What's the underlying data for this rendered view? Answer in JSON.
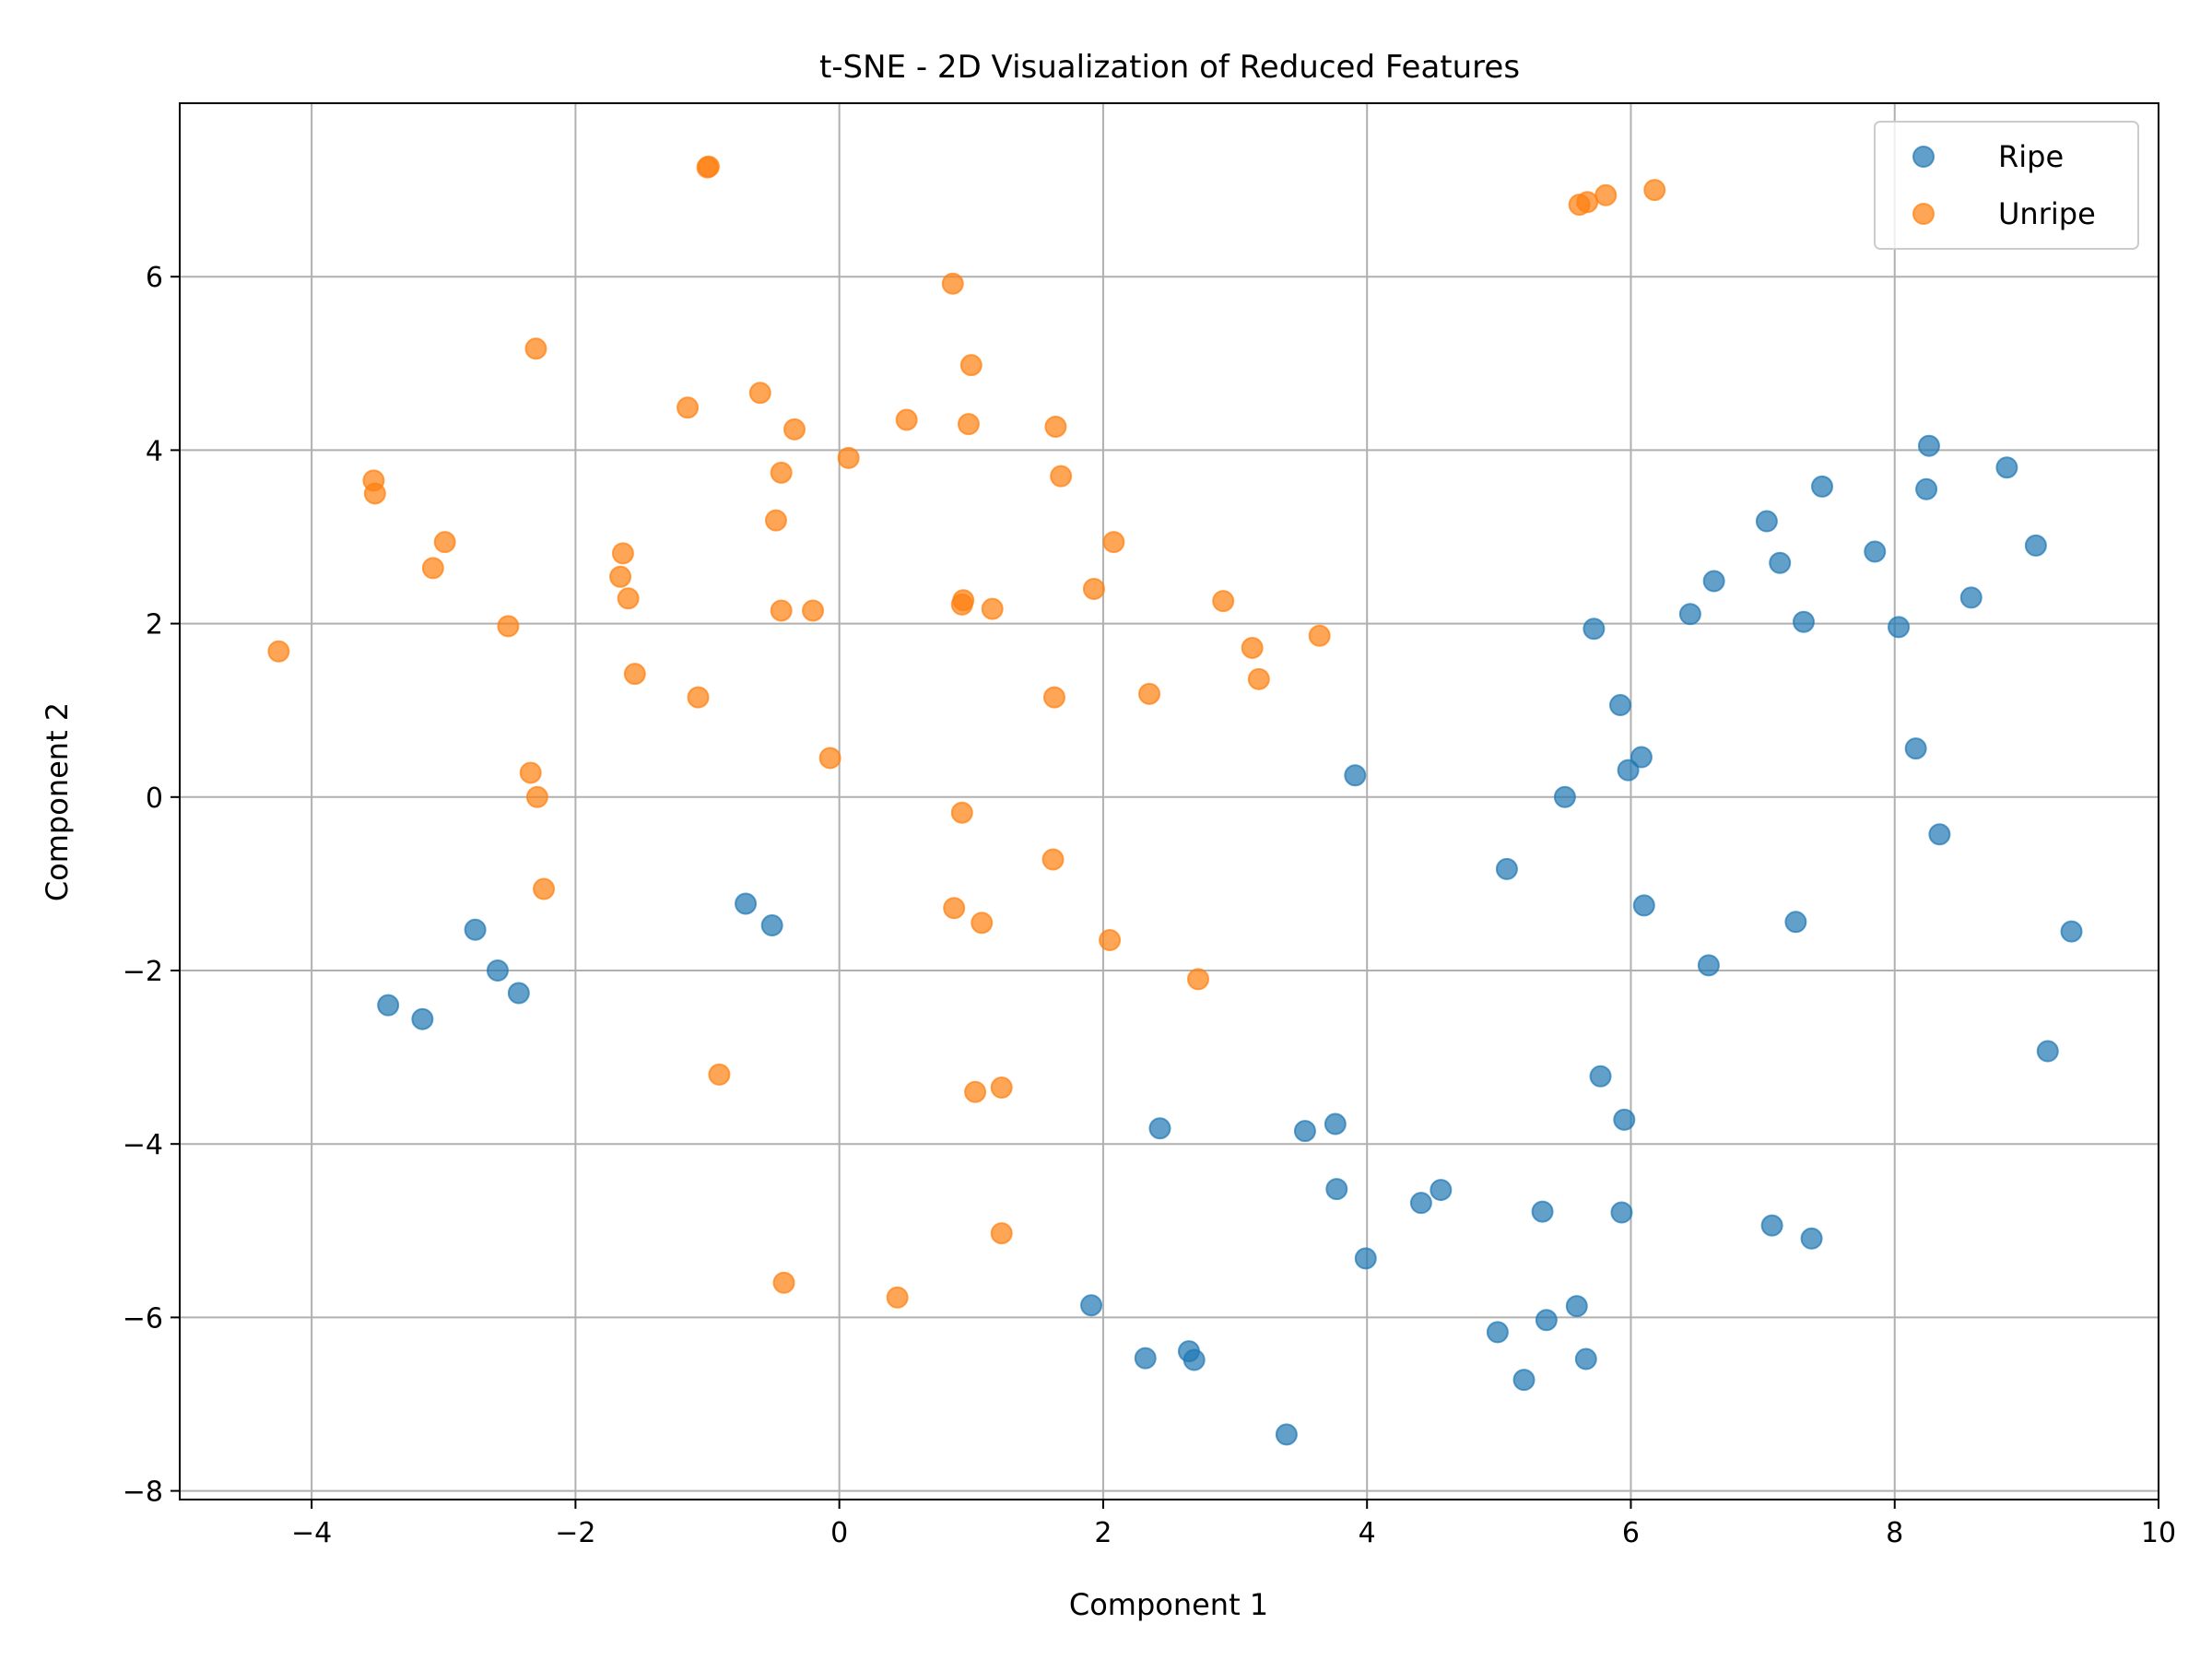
{
  "chart_data": {
    "type": "scatter",
    "title": "t-SNE - 2D Visualization of Reduced Features",
    "xlabel": "Component 1",
    "ylabel": "Component 2",
    "xlim": [
      -5,
      10
    ],
    "ylim": [
      -8.1,
      8.0
    ],
    "xticks": [
      -4,
      -2,
      0,
      2,
      4,
      6,
      8,
      10
    ],
    "yticks": [
      -8,
      -6,
      -4,
      -2,
      0,
      2,
      4,
      6
    ],
    "xtick_labels": [
      "−4",
      "−2",
      "0",
      "2",
      "4",
      "6",
      "8",
      "10"
    ],
    "ytick_labels": [
      "−8",
      "−6",
      "−4",
      "−2",
      "0",
      "2",
      "4",
      "6"
    ],
    "grid": true,
    "legend_position": "top-right",
    "series": [
      {
        "name": "Ripe",
        "color": "#1f77b4",
        "points": [
          [
            -3.42,
            -2.4
          ],
          [
            -3.16,
            -2.56
          ],
          [
            -2.76,
            -1.53
          ],
          [
            -2.59,
            -2.0
          ],
          [
            -2.43,
            -2.26
          ],
          [
            -0.71,
            -1.23
          ],
          [
            -0.51,
            -1.48
          ],
          [
            1.91,
            -5.86
          ],
          [
            2.32,
            -6.47
          ],
          [
            2.43,
            -3.82
          ],
          [
            2.65,
            -6.39
          ],
          [
            2.69,
            -6.49
          ],
          [
            3.39,
            -7.35
          ],
          [
            3.53,
            -3.85
          ],
          [
            3.76,
            -3.77
          ],
          [
            3.77,
            -4.52
          ],
          [
            3.91,
            0.25
          ],
          [
            3.99,
            -5.32
          ],
          [
            4.41,
            -4.68
          ],
          [
            4.56,
            -4.53
          ],
          [
            4.99,
            -6.17
          ],
          [
            5.06,
            -0.83
          ],
          [
            5.19,
            -6.72
          ],
          [
            5.33,
            -4.78
          ],
          [
            5.36,
            -6.03
          ],
          [
            5.5,
            0.0
          ],
          [
            5.59,
            -5.87
          ],
          [
            5.66,
            -6.48
          ],
          [
            5.72,
            1.94
          ],
          [
            5.77,
            -3.22
          ],
          [
            5.92,
            1.06
          ],
          [
            5.93,
            -4.79
          ],
          [
            5.95,
            -3.72
          ],
          [
            5.98,
            0.31
          ],
          [
            6.08,
            0.46
          ],
          [
            6.1,
            -1.25
          ],
          [
            6.45,
            2.11
          ],
          [
            6.59,
            -1.94
          ],
          [
            6.63,
            2.49
          ],
          [
            7.03,
            3.18
          ],
          [
            7.07,
            -4.94
          ],
          [
            7.13,
            2.7
          ],
          [
            7.25,
            -1.44
          ],
          [
            7.31,
            2.02
          ],
          [
            7.37,
            -5.09
          ],
          [
            7.45,
            3.58
          ],
          [
            7.85,
            2.83
          ],
          [
            8.03,
            1.96
          ],
          [
            8.16,
            0.56
          ],
          [
            8.24,
            3.55
          ],
          [
            8.26,
            4.05
          ],
          [
            8.34,
            -0.43
          ],
          [
            8.58,
            2.3
          ],
          [
            8.85,
            3.8
          ],
          [
            9.07,
            2.9
          ],
          [
            9.16,
            -2.93
          ],
          [
            9.34,
            -1.55
          ]
        ]
      },
      {
        "name": "Unripe",
        "color": "#ff7f0e",
        "points": [
          [
            -4.25,
            1.68
          ],
          [
            -3.53,
            3.65
          ],
          [
            -3.52,
            3.5
          ],
          [
            -3.08,
            2.64
          ],
          [
            -2.99,
            2.94
          ],
          [
            -2.51,
            1.97
          ],
          [
            -2.34,
            0.28
          ],
          [
            -2.3,
            5.17
          ],
          [
            -2.29,
            0.0
          ],
          [
            -2.24,
            -1.06
          ],
          [
            -1.66,
            2.54
          ],
          [
            -1.64,
            2.81
          ],
          [
            -1.6,
            2.29
          ],
          [
            -1.55,
            1.42
          ],
          [
            -1.15,
            4.49
          ],
          [
            -1.07,
            1.15
          ],
          [
            -1.0,
            7.26
          ],
          [
            -0.99,
            7.27
          ],
          [
            -0.91,
            -3.2
          ],
          [
            -0.6,
            4.66
          ],
          [
            -0.48,
            3.19
          ],
          [
            -0.44,
            3.74
          ],
          [
            -0.44,
            2.15
          ],
          [
            -0.42,
            -5.6
          ],
          [
            -0.34,
            4.24
          ],
          [
            -0.2,
            2.15
          ],
          [
            -0.07,
            0.45
          ],
          [
            0.07,
            3.91
          ],
          [
            0.44,
            -5.77
          ],
          [
            0.51,
            4.35
          ],
          [
            0.86,
            5.92
          ],
          [
            0.87,
            -1.28
          ],
          [
            0.93,
            -0.18
          ],
          [
            0.93,
            2.22
          ],
          [
            0.94,
            2.27
          ],
          [
            0.98,
            4.3
          ],
          [
            1.0,
            4.98
          ],
          [
            1.03,
            -3.4
          ],
          [
            1.08,
            -1.45
          ],
          [
            1.16,
            2.17
          ],
          [
            1.23,
            -3.35
          ],
          [
            1.23,
            -5.03
          ],
          [
            1.62,
            -0.72
          ],
          [
            1.63,
            1.15
          ],
          [
            1.64,
            4.27
          ],
          [
            1.68,
            3.7
          ],
          [
            1.93,
            2.4
          ],
          [
            2.05,
            -1.65
          ],
          [
            2.08,
            2.94
          ],
          [
            2.35,
            1.19
          ],
          [
            2.72,
            -2.1
          ],
          [
            2.91,
            2.26
          ],
          [
            3.13,
            1.72
          ],
          [
            3.18,
            1.36
          ],
          [
            3.64,
            1.86
          ],
          [
            5.61,
            6.83
          ],
          [
            5.67,
            6.86
          ],
          [
            5.81,
            6.94
          ],
          [
            6.18,
            7.0
          ]
        ]
      }
    ]
  }
}
